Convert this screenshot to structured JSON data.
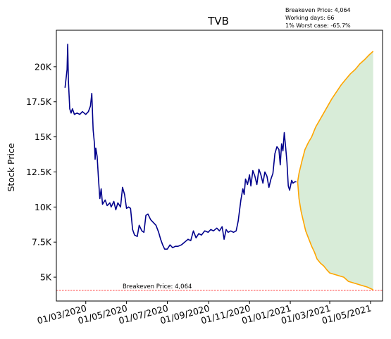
{
  "chart_data": {
    "type": "line",
    "title": "TVB",
    "ylabel": "Stock Price",
    "xlabel": "",
    "ylim": [
      3300,
      22600
    ],
    "xlim": [
      "2020-01-17",
      "2021-05-19"
    ],
    "grid": false,
    "y_ticks": [
      {
        "value": 5000,
        "label": "5K"
      },
      {
        "value": 7500,
        "label": "7.5K"
      },
      {
        "value": 10000,
        "label": "10K"
      },
      {
        "value": 12500,
        "label": "12.5K"
      },
      {
        "value": 15000,
        "label": "15K"
      },
      {
        "value": 17500,
        "label": "17.5K"
      },
      {
        "value": 20000,
        "label": "20K"
      }
    ],
    "x_ticks": [
      {
        "date": "2020-03-01",
        "label": "01/03/2020"
      },
      {
        "date": "2020-05-01",
        "label": "01/05/2020"
      },
      {
        "date": "2020-07-01",
        "label": "01/07/2020"
      },
      {
        "date": "2020-09-01",
        "label": "01/09/2020"
      },
      {
        "date": "2020-11-01",
        "label": "01/11/2020"
      },
      {
        "date": "2021-01-01",
        "label": "01/01/2021"
      },
      {
        "date": "2021-03-01",
        "label": "01/03/2021"
      },
      {
        "date": "2021-05-01",
        "label": "01/05/2021"
      }
    ],
    "annotations": {
      "top_right": [
        "Breakeven Price: 4,064",
        "Working days: 66",
        "1% Worst case: -65.7%"
      ],
      "breakeven_label": "Breakeven Price: 4,064"
    },
    "breakeven": 4064,
    "series": [
      {
        "role": "historical",
        "color": "#00008b",
        "points": [
          [
            "2020-01-30",
            18500
          ],
          [
            "2020-02-02",
            19800
          ],
          [
            "2020-02-03",
            21600
          ],
          [
            "2020-02-04",
            19000
          ],
          [
            "2020-02-06",
            17000
          ],
          [
            "2020-02-08",
            16700
          ],
          [
            "2020-02-10",
            17000
          ],
          [
            "2020-02-13",
            16600
          ],
          [
            "2020-02-17",
            16700
          ],
          [
            "2020-02-21",
            16600
          ],
          [
            "2020-02-25",
            16800
          ],
          [
            "2020-03-01",
            16600
          ],
          [
            "2020-03-05",
            16800
          ],
          [
            "2020-03-08",
            17200
          ],
          [
            "2020-03-10",
            18100
          ],
          [
            "2020-03-12",
            15500
          ],
          [
            "2020-03-14",
            14500
          ],
          [
            "2020-03-15",
            13400
          ],
          [
            "2020-03-16",
            14200
          ],
          [
            "2020-03-18",
            13600
          ],
          [
            "2020-03-20",
            12000
          ],
          [
            "2020-03-22",
            10600
          ],
          [
            "2020-03-24",
            11300
          ],
          [
            "2020-03-26",
            10200
          ],
          [
            "2020-03-30",
            10500
          ],
          [
            "2020-04-02",
            10100
          ],
          [
            "2020-04-06",
            10300
          ],
          [
            "2020-04-08",
            10000
          ],
          [
            "2020-04-12",
            10400
          ],
          [
            "2020-04-15",
            9800
          ],
          [
            "2020-04-18",
            10300
          ],
          [
            "2020-04-22",
            10000
          ],
          [
            "2020-04-25",
            11400
          ],
          [
            "2020-04-28",
            10900
          ],
          [
            "2020-05-01",
            9900
          ],
          [
            "2020-05-04",
            10000
          ],
          [
            "2020-05-07",
            9900
          ],
          [
            "2020-05-10",
            8400
          ],
          [
            "2020-05-13",
            8000
          ],
          [
            "2020-05-17",
            7900
          ],
          [
            "2020-05-20",
            8700
          ],
          [
            "2020-05-24",
            8300
          ],
          [
            "2020-05-27",
            8200
          ],
          [
            "2020-05-30",
            9400
          ],
          [
            "2020-06-02",
            9500
          ],
          [
            "2020-06-06",
            9100
          ],
          [
            "2020-06-10",
            8900
          ],
          [
            "2020-06-14",
            8700
          ],
          [
            "2020-06-18",
            8200
          ],
          [
            "2020-06-21",
            7700
          ],
          [
            "2020-06-24",
            7300
          ],
          [
            "2020-06-27",
            7000
          ],
          [
            "2020-07-01",
            7000
          ],
          [
            "2020-07-05",
            7300
          ],
          [
            "2020-07-09",
            7100
          ],
          [
            "2020-07-13",
            7200
          ],
          [
            "2020-07-17",
            7200
          ],
          [
            "2020-07-22",
            7300
          ],
          [
            "2020-07-27",
            7500
          ],
          [
            "2020-08-01",
            7700
          ],
          [
            "2020-08-05",
            7600
          ],
          [
            "2020-08-09",
            8300
          ],
          [
            "2020-08-13",
            7800
          ],
          [
            "2020-08-17",
            8100
          ],
          [
            "2020-08-21",
            8000
          ],
          [
            "2020-08-26",
            8300
          ],
          [
            "2020-08-31",
            8200
          ],
          [
            "2020-09-04",
            8400
          ],
          [
            "2020-09-08",
            8300
          ],
          [
            "2020-09-13",
            8500
          ],
          [
            "2020-09-17",
            8300
          ],
          [
            "2020-09-21",
            8600
          ],
          [
            "2020-09-24",
            7700
          ],
          [
            "2020-09-27",
            8400
          ],
          [
            "2020-09-30",
            8200
          ],
          [
            "2020-10-04",
            8300
          ],
          [
            "2020-10-08",
            8200
          ],
          [
            "2020-10-12",
            8300
          ],
          [
            "2020-10-15",
            9000
          ],
          [
            "2020-10-19",
            10500
          ],
          [
            "2020-10-22",
            11300
          ],
          [
            "2020-10-24",
            10900
          ],
          [
            "2020-10-26",
            12000
          ],
          [
            "2020-10-29",
            11600
          ],
          [
            "2020-11-01",
            12300
          ],
          [
            "2020-11-03",
            11500
          ],
          [
            "2020-11-06",
            12600
          ],
          [
            "2020-11-09",
            12200
          ],
          [
            "2020-11-12",
            11600
          ],
          [
            "2020-11-15",
            12700
          ],
          [
            "2020-11-18",
            12300
          ],
          [
            "2020-11-21",
            11700
          ],
          [
            "2020-11-24",
            12500
          ],
          [
            "2020-11-27",
            12200
          ],
          [
            "2020-11-30",
            11400
          ],
          [
            "2020-12-03",
            12000
          ],
          [
            "2020-12-06",
            12400
          ],
          [
            "2020-12-09",
            13800
          ],
          [
            "2020-12-12",
            14300
          ],
          [
            "2020-12-15",
            14100
          ],
          [
            "2020-12-17",
            13000
          ],
          [
            "2020-12-19",
            14500
          ],
          [
            "2020-12-21",
            14000
          ],
          [
            "2020-12-23",
            15300
          ],
          [
            "2020-12-25",
            14300
          ],
          [
            "2020-12-27",
            13200
          ],
          [
            "2020-12-29",
            11500
          ],
          [
            "2020-12-31",
            11200
          ],
          [
            "2021-01-03",
            11900
          ],
          [
            "2021-01-05",
            11700
          ],
          [
            "2021-01-08",
            11800
          ],
          [
            "2021-01-10",
            11800
          ]
        ]
      },
      {
        "role": "forecast-upper",
        "color": "#ffa500",
        "points": [
          [
            "2021-01-12",
            11800
          ],
          [
            "2021-01-14",
            12400
          ],
          [
            "2021-01-18",
            13200
          ],
          [
            "2021-01-23",
            14100
          ],
          [
            "2021-01-28",
            14600
          ],
          [
            "2021-02-02",
            15000
          ],
          [
            "2021-02-08",
            15700
          ],
          [
            "2021-02-14",
            16200
          ],
          [
            "2021-02-20",
            16700
          ],
          [
            "2021-02-26",
            17200
          ],
          [
            "2021-03-04",
            17700
          ],
          [
            "2021-03-11",
            18200
          ],
          [
            "2021-03-18",
            18700
          ],
          [
            "2021-03-25",
            19100
          ],
          [
            "2021-04-01",
            19500
          ],
          [
            "2021-04-08",
            19800
          ],
          [
            "2021-04-15",
            20200
          ],
          [
            "2021-04-22",
            20500
          ],
          [
            "2021-04-28",
            20800
          ],
          [
            "2021-05-05",
            21100
          ]
        ]
      },
      {
        "role": "forecast-lower",
        "color": "#ffa500",
        "points": [
          [
            "2021-01-12",
            11800
          ],
          [
            "2021-01-14",
            10600
          ],
          [
            "2021-01-17",
            9700
          ],
          [
            "2021-01-20",
            9100
          ],
          [
            "2021-01-24",
            8300
          ],
          [
            "2021-01-28",
            7800
          ],
          [
            "2021-02-02",
            7200
          ],
          [
            "2021-02-06",
            6800
          ],
          [
            "2021-02-10",
            6300
          ],
          [
            "2021-02-15",
            6000
          ],
          [
            "2021-02-20",
            5800
          ],
          [
            "2021-02-25",
            5500
          ],
          [
            "2021-03-01",
            5300
          ],
          [
            "2021-03-08",
            5200
          ],
          [
            "2021-03-15",
            5100
          ],
          [
            "2021-03-22",
            5000
          ],
          [
            "2021-03-29",
            4700
          ],
          [
            "2021-04-05",
            4600
          ],
          [
            "2021-04-12",
            4500
          ],
          [
            "2021-04-19",
            4400
          ],
          [
            "2021-04-26",
            4300
          ],
          [
            "2021-05-05",
            4100
          ]
        ]
      }
    ],
    "band_fill_color": "#d8ecd8",
    "breakeven_color": "#ff0000"
  }
}
